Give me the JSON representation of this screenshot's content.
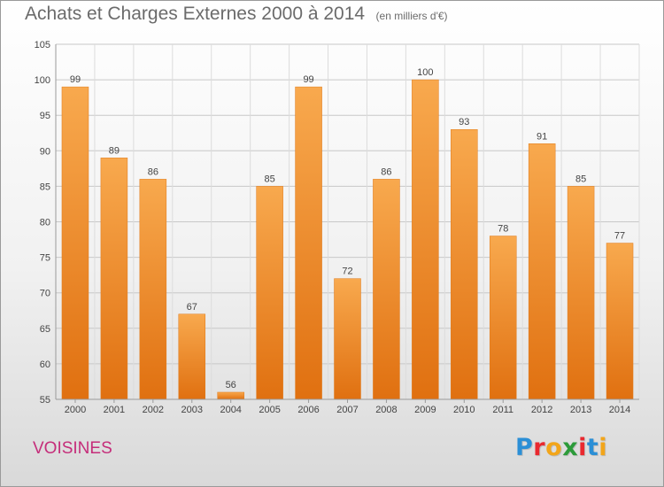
{
  "chart_data": {
    "type": "bar",
    "title": "Achats et Charges Externes 2000 à 2014",
    "unit_label": "(en milliers d'€)",
    "categories": [
      "2000",
      "2001",
      "2002",
      "2003",
      "2004",
      "2005",
      "2006",
      "2007",
      "2008",
      "2009",
      "2010",
      "2011",
      "2012",
      "2013",
      "2014"
    ],
    "values": [
      99,
      89,
      86,
      67,
      56,
      85,
      99,
      72,
      86,
      100,
      93,
      78,
      91,
      85,
      77
    ],
    "ylim": [
      55,
      105
    ],
    "yticks": [
      55,
      60,
      65,
      70,
      75,
      80,
      85,
      90,
      95,
      100,
      105
    ],
    "grid": true,
    "legend": "none",
    "bar_color": "#f08c2a"
  },
  "footer": {
    "commune": "VOISINES",
    "brand_letters": [
      "P",
      "r",
      "o",
      "x",
      "i",
      "t",
      "i"
    ],
    "brand_colors": [
      "#2b8fd6",
      "#e9292f",
      "#f2a51a",
      "#2c9b3a",
      "#e9292f",
      "#2b8fd6",
      "#f2a51a"
    ]
  }
}
